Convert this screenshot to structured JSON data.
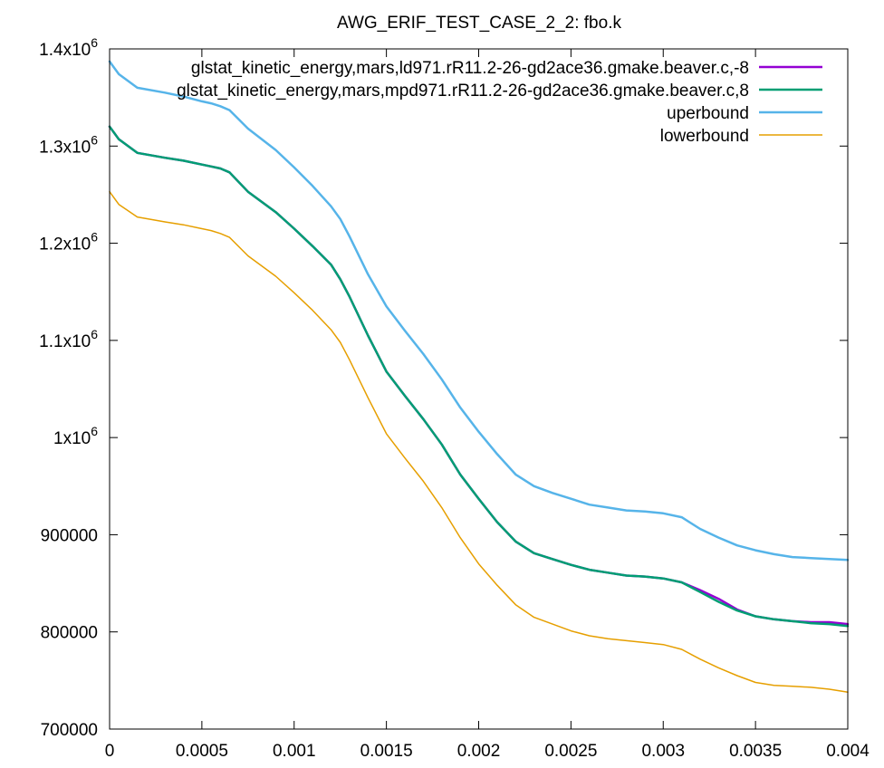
{
  "chart_data": {
    "type": "line",
    "title": "AWG_ERIF_TEST_CASE_2_2: fbo.k",
    "xlabel": "",
    "ylabel": "",
    "xlim": [
      0,
      0.004
    ],
    "ylim": [
      700000,
      1400000
    ],
    "grid": false,
    "legend_position": "top-right",
    "x_ticks": [
      {
        "value": 0,
        "label": "0"
      },
      {
        "value": 0.0005,
        "label": "0.0005"
      },
      {
        "value": 0.001,
        "label": "0.001"
      },
      {
        "value": 0.0015,
        "label": "0.0015"
      },
      {
        "value": 0.002,
        "label": "0.002"
      },
      {
        "value": 0.0025,
        "label": "0.0025"
      },
      {
        "value": 0.003,
        "label": "0.003"
      },
      {
        "value": 0.0035,
        "label": "0.0035"
      },
      {
        "value": 0.004,
        "label": "0.004"
      }
    ],
    "y_ticks": [
      {
        "value": 700000,
        "label": "700000"
      },
      {
        "value": 800000,
        "label": "800000"
      },
      {
        "value": 900000,
        "label": "900000"
      },
      {
        "value": 1000000,
        "label": "1x10",
        "exp": "6"
      },
      {
        "value": 1100000,
        "label": "1.1x10",
        "exp": "6"
      },
      {
        "value": 1200000,
        "label": "1.2x10",
        "exp": "6"
      },
      {
        "value": 1300000,
        "label": "1.3x10",
        "exp": "6"
      },
      {
        "value": 1400000,
        "label": "1.4x10",
        "exp": "6"
      }
    ],
    "series": [
      {
        "name": "glstat_kinetic_energy,mars,ld971.rR11.2-26-gd2ace36.gmake.beaver.c,-8",
        "color": "#9400d3",
        "width": 2.5,
        "x": [
          0,
          5e-05,
          0.00015,
          0.0003,
          0.0004,
          0.0005,
          0.00055,
          0.0006,
          0.00065,
          0.00075,
          0.0009,
          0.001,
          0.0011,
          0.0012,
          0.00125,
          0.0013,
          0.0014,
          0.0015,
          0.0016,
          0.0017,
          0.0018,
          0.0019,
          0.002,
          0.0021,
          0.0022,
          0.0023,
          0.0024,
          0.0025,
          0.0026,
          0.0027,
          0.0028,
          0.0029,
          0.003,
          0.0031,
          0.0032,
          0.0033,
          0.0034,
          0.0035,
          0.0036,
          0.0037,
          0.0038,
          0.0039,
          0.004
        ],
        "y": [
          1320000,
          1307000,
          1293000,
          1288000,
          1285000,
          1281000,
          1279000,
          1277000,
          1273000,
          1253000,
          1232000,
          1215000,
          1197000,
          1178000,
          1163000,
          1145000,
          1105000,
          1068000,
          1043000,
          1019000,
          993000,
          962000,
          937000,
          913000,
          893000,
          881000,
          875000,
          869000,
          864000,
          861000,
          858000,
          857000,
          855000,
          851000,
          843000,
          834000,
          823000,
          816000,
          813000,
          811000,
          810000,
          810000,
          808000
        ]
      },
      {
        "name": "glstat_kinetic_energy,mars,mpd971.rR11.2-26-gd2ace36.gmake.beaver.c,8",
        "color": "#009e73",
        "width": 2.5,
        "x": [
          0,
          5e-05,
          0.00015,
          0.0003,
          0.0004,
          0.0005,
          0.00055,
          0.0006,
          0.00065,
          0.00075,
          0.0009,
          0.001,
          0.0011,
          0.0012,
          0.00125,
          0.0013,
          0.0014,
          0.0015,
          0.0016,
          0.0017,
          0.0018,
          0.0019,
          0.002,
          0.0021,
          0.0022,
          0.0023,
          0.0024,
          0.0025,
          0.0026,
          0.0027,
          0.0028,
          0.0029,
          0.003,
          0.0031,
          0.0032,
          0.0033,
          0.0034,
          0.0035,
          0.0036,
          0.0037,
          0.0038,
          0.0039,
          0.004
        ],
        "y": [
          1320000,
          1307000,
          1293000,
          1288000,
          1285000,
          1281000,
          1279000,
          1277000,
          1273000,
          1253000,
          1232000,
          1215000,
          1197000,
          1178000,
          1163000,
          1145000,
          1105000,
          1068000,
          1043000,
          1019000,
          993000,
          962000,
          937000,
          913000,
          893000,
          881000,
          875000,
          869000,
          864000,
          861000,
          858000,
          857000,
          855000,
          851000,
          841000,
          831000,
          822000,
          816000,
          813000,
          811000,
          809000,
          808000,
          806000
        ]
      },
      {
        "name": "uperbound",
        "color": "#56b4e9",
        "width": 2.5,
        "x": [
          0,
          5e-05,
          0.00015,
          0.0003,
          0.0004,
          0.0005,
          0.00055,
          0.0006,
          0.00065,
          0.00075,
          0.0009,
          0.001,
          0.0011,
          0.0012,
          0.00125,
          0.0013,
          0.0014,
          0.0015,
          0.0016,
          0.0017,
          0.0018,
          0.0019,
          0.002,
          0.0021,
          0.0022,
          0.0023,
          0.0024,
          0.0025,
          0.0026,
          0.0027,
          0.0028,
          0.0029,
          0.003,
          0.0031,
          0.0032,
          0.0033,
          0.0034,
          0.0035,
          0.0036,
          0.0037,
          0.0038,
          0.0039,
          0.004
        ],
        "y": [
          1387000,
          1374000,
          1360000,
          1355000,
          1351000,
          1346000,
          1344000,
          1341000,
          1337000,
          1318000,
          1296000,
          1278000,
          1259000,
          1238000,
          1225000,
          1207000,
          1168000,
          1135000,
          1110000,
          1086000,
          1060000,
          1031000,
          1006000,
          983000,
          962000,
          950000,
          943000,
          937000,
          931000,
          928000,
          925000,
          924000,
          922000,
          918000,
          906000,
          897000,
          889000,
          884000,
          880000,
          877000,
          876000,
          875000,
          874000
        ]
      },
      {
        "name": "lowerbound",
        "color": "#e69f00",
        "width": 1.5,
        "x": [
          0,
          5e-05,
          0.00015,
          0.0003,
          0.0004,
          0.0005,
          0.00055,
          0.0006,
          0.00065,
          0.00075,
          0.0009,
          0.001,
          0.0011,
          0.0012,
          0.00125,
          0.0013,
          0.0014,
          0.0015,
          0.0016,
          0.0017,
          0.0018,
          0.0019,
          0.002,
          0.0021,
          0.0022,
          0.0023,
          0.0024,
          0.0025,
          0.0026,
          0.0027,
          0.0028,
          0.0029,
          0.003,
          0.0031,
          0.0032,
          0.0033,
          0.0034,
          0.0035,
          0.0036,
          0.0037,
          0.0038,
          0.0039,
          0.004
        ],
        "y": [
          1253000,
          1240000,
          1227000,
          1222000,
          1219000,
          1215000,
          1213000,
          1210000,
          1206000,
          1187000,
          1166000,
          1149000,
          1131000,
          1111000,
          1098000,
          1080000,
          1041000,
          1004000,
          979000,
          955000,
          928000,
          897000,
          870000,
          848000,
          828000,
          815000,
          808000,
          801000,
          796000,
          793000,
          791000,
          789000,
          787000,
          782000,
          772000,
          763000,
          755000,
          748000,
          745000,
          744000,
          743000,
          741000,
          738000
        ]
      }
    ]
  }
}
